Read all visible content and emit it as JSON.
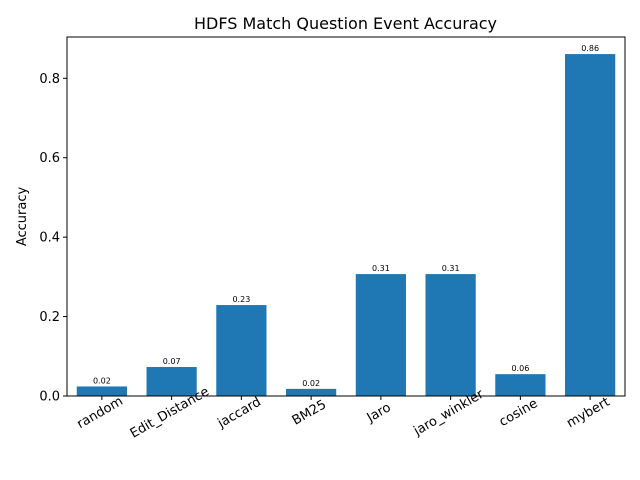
{
  "chart_data": {
    "type": "bar",
    "title": "HDFS Match Question Event Accuracy",
    "xlabel": "",
    "ylabel": "Accuracy",
    "categories": [
      "random",
      "Edit_Distance",
      "jaccard",
      "BM25",
      "Jaro",
      "jaro_winkler",
      "cosine",
      "mybert"
    ],
    "values": [
      0.024,
      0.073,
      0.229,
      0.018,
      0.307,
      0.307,
      0.055,
      0.861
    ],
    "data_labels": [
      "0.02",
      "0.07",
      "0.23",
      "0.02",
      "0.31",
      "0.31",
      "0.06",
      "0.86"
    ],
    "ylim": [
      0,
      0.904
    ],
    "yticks": [
      0.0,
      0.2,
      0.4,
      0.6,
      0.8
    ],
    "ytick_labels": [
      "0.0",
      "0.2",
      "0.4",
      "0.6",
      "0.8"
    ],
    "bar_color": "#1f77b4",
    "grid": false,
    "legend": "none"
  }
}
